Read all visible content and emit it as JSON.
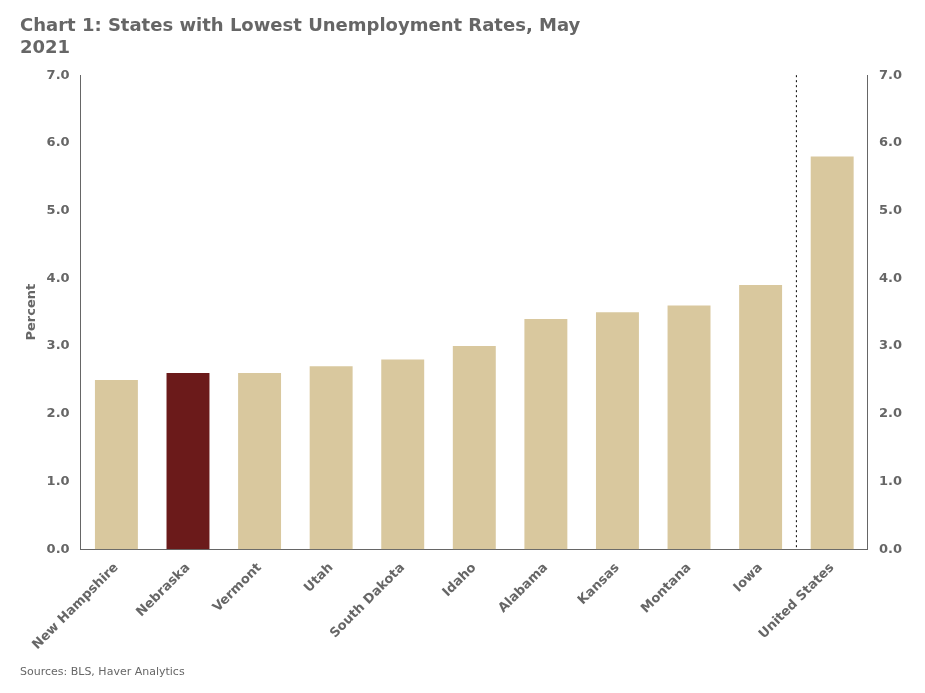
{
  "chart_data": {
    "type": "bar",
    "title": "Chart 1: States with Lowest Unemployment Rates, May\n2021",
    "ylabel": "Percent",
    "source": "Sources: BLS, Haver Analytics",
    "categories": [
      "New Hampshire",
      "Nebraska",
      "Vermont",
      "Utah",
      "South Dakota",
      "Idaho",
      "Alabama",
      "Kansas",
      "Montana",
      "Iowa",
      "United States"
    ],
    "values": [
      2.5,
      2.6,
      2.6,
      2.7,
      2.8,
      3.0,
      3.4,
      3.5,
      3.6,
      3.9,
      5.8
    ],
    "colors": [
      "#d9c89e",
      "#6b1a1a",
      "#d9c89e",
      "#d9c89e",
      "#d9c89e",
      "#d9c89e",
      "#d9c89e",
      "#d9c89e",
      "#d9c89e",
      "#d9c89e",
      "#d9c89e"
    ],
    "ylim": [
      0.0,
      7.0
    ],
    "yticks": [
      {
        "value": 0.0,
        "label": "0.0"
      },
      {
        "value": 1.0,
        "label": "1.0"
      },
      {
        "value": 2.0,
        "label": "2.0"
      },
      {
        "value": 3.0,
        "label": "3.0"
      },
      {
        "value": 4.0,
        "label": "4.0"
      },
      {
        "value": 5.0,
        "label": "5.0"
      },
      {
        "value": 6.0,
        "label": "6.0"
      },
      {
        "value": 7.0,
        "label": "7.0"
      }
    ],
    "y2lim": [
      0.0,
      7.0
    ],
    "y2ticks": [
      {
        "value": 0.0,
        "label": "0.0"
      },
      {
        "value": 1.0,
        "label": "1.0"
      },
      {
        "value": 2.0,
        "label": "2.0"
      },
      {
        "value": 3.0,
        "label": "3.0"
      },
      {
        "value": 4.0,
        "label": "4.0"
      },
      {
        "value": 5.0,
        "label": "5.0"
      },
      {
        "value": 6.0,
        "label": "6.0"
      },
      {
        "value": 7.0,
        "label": "7.0"
      }
    ],
    "grid": false
  }
}
